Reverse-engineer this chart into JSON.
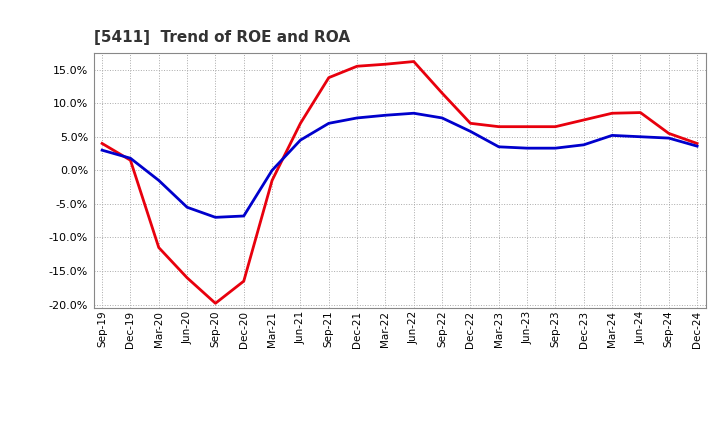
{
  "title": "[5411]  Trend of ROE and ROA",
  "labels": [
    "Sep-19",
    "Dec-19",
    "Mar-20",
    "Jun-20",
    "Sep-20",
    "Dec-20",
    "Mar-21",
    "Jun-21",
    "Sep-21",
    "Dec-21",
    "Mar-22",
    "Jun-22",
    "Sep-22",
    "Dec-22",
    "Mar-23",
    "Jun-23",
    "Sep-23",
    "Dec-23",
    "Mar-24",
    "Jun-24",
    "Sep-24",
    "Dec-24"
  ],
  "ROE": [
    4.0,
    1.5,
    -11.5,
    -16.0,
    -19.8,
    -16.5,
    -1.5,
    7.0,
    13.8,
    15.5,
    15.8,
    16.2,
    11.5,
    7.0,
    6.5,
    6.5,
    6.5,
    7.5,
    8.5,
    8.6,
    5.5,
    4.0
  ],
  "ROA": [
    3.0,
    1.8,
    -1.5,
    -5.5,
    -7.0,
    -6.8,
    0.0,
    4.5,
    7.0,
    7.8,
    8.2,
    8.5,
    7.8,
    5.8,
    3.5,
    3.3,
    3.3,
    3.8,
    5.2,
    5.0,
    4.8,
    3.6
  ],
  "ROE_color": "#e8000d",
  "ROA_color": "#0000cc",
  "ylim": [
    -20.5,
    17.5
  ],
  "yticks": [
    -20.0,
    -15.0,
    -10.0,
    -5.0,
    0.0,
    5.0,
    10.0,
    15.0
  ],
  "bg_color": "#ffffff",
  "grid_color": "#aaaaaa",
  "title_fontsize": 11,
  "line_width": 2.0
}
